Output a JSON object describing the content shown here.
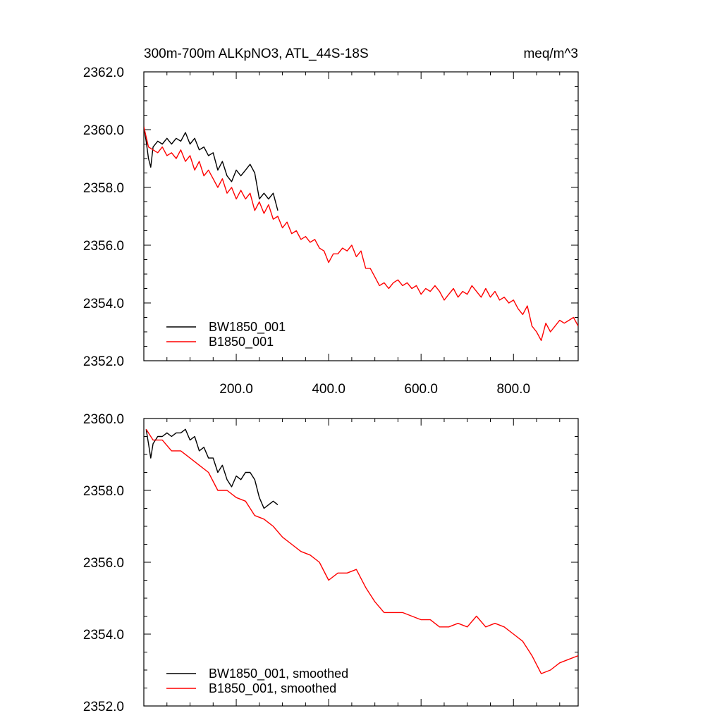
{
  "chart_data": [
    {
      "type": "line",
      "title": "300m-700m ALKpNO3, ATL_44S-18S",
      "units": "meq/m^3",
      "xlim": [
        0,
        940
      ],
      "ylim": [
        2352,
        2362
      ],
      "x_ticks": [
        200,
        400,
        600,
        800
      ],
      "x_tick_labels": [
        "200.0",
        "400.0",
        "600.0",
        "800.0"
      ],
      "y_ticks": [
        2352,
        2354,
        2356,
        2358,
        2360,
        2362
      ],
      "y_tick_labels": [
        "2352.0",
        "2354.0",
        "2356.0",
        "2358.0",
        "2360.0",
        "2362.0"
      ],
      "legend": [
        "BW1850_001",
        "B1850_001"
      ],
      "legend_position": "bottom-left",
      "series": [
        {
          "name": "BW1850_001",
          "color": "#000000",
          "x": [
            0,
            5,
            10,
            15,
            20,
            30,
            40,
            50,
            60,
            70,
            80,
            90,
            100,
            110,
            120,
            130,
            140,
            150,
            160,
            170,
            180,
            190,
            200,
            210,
            220,
            230,
            240,
            250,
            260,
            270,
            280,
            290
          ],
          "y": [
            2360.1,
            2359.6,
            2359.0,
            2358.7,
            2359.4,
            2359.6,
            2359.5,
            2359.7,
            2359.5,
            2359.7,
            2359.6,
            2359.9,
            2359.5,
            2359.7,
            2359.3,
            2359.4,
            2359.1,
            2359.2,
            2358.6,
            2358.9,
            2358.4,
            2358.2,
            2358.6,
            2358.4,
            2358.6,
            2358.8,
            2358.5,
            2357.6,
            2357.8,
            2357.6,
            2357.8,
            2357.2
          ]
        },
        {
          "name": "B1850_001",
          "color": "#ff0000",
          "x": [
            0,
            10,
            20,
            30,
            40,
            50,
            60,
            70,
            80,
            90,
            100,
            110,
            120,
            130,
            140,
            150,
            160,
            170,
            180,
            190,
            200,
            210,
            220,
            230,
            240,
            250,
            260,
            270,
            280,
            290,
            300,
            310,
            320,
            330,
            340,
            350,
            360,
            370,
            380,
            390,
            400,
            410,
            420,
            430,
            440,
            450,
            460,
            470,
            480,
            490,
            500,
            510,
            520,
            530,
            540,
            550,
            560,
            570,
            580,
            590,
            600,
            610,
            620,
            630,
            640,
            650,
            660,
            670,
            680,
            690,
            700,
            710,
            720,
            730,
            740,
            750,
            760,
            770,
            780,
            790,
            800,
            810,
            820,
            830,
            840,
            850,
            860,
            870,
            880,
            890,
            900,
            910,
            920,
            930,
            940
          ],
          "y": [
            2360.1,
            2359.4,
            2359.3,
            2359.2,
            2359.4,
            2359.1,
            2359.2,
            2359.0,
            2359.3,
            2358.9,
            2359.1,
            2358.6,
            2358.9,
            2358.4,
            2358.6,
            2358.3,
            2358.0,
            2358.3,
            2357.8,
            2358.0,
            2357.6,
            2357.9,
            2357.6,
            2357.8,
            2357.2,
            2357.5,
            2357.1,
            2357.4,
            2356.9,
            2357.0,
            2356.6,
            2356.8,
            2356.4,
            2356.5,
            2356.2,
            2356.3,
            2356.1,
            2356.2,
            2355.9,
            2355.8,
            2355.4,
            2355.7,
            2355.7,
            2355.9,
            2355.8,
            2356.0,
            2355.6,
            2355.8,
            2355.2,
            2355.2,
            2354.9,
            2354.6,
            2354.7,
            2354.5,
            2354.7,
            2354.8,
            2354.6,
            2354.7,
            2354.5,
            2354.6,
            2354.3,
            2354.5,
            2354.4,
            2354.6,
            2354.4,
            2354.1,
            2354.3,
            2354.5,
            2354.2,
            2354.4,
            2354.3,
            2354.6,
            2354.4,
            2354.2,
            2354.5,
            2354.2,
            2354.4,
            2354.1,
            2354.2,
            2354.0,
            2354.1,
            2353.8,
            2353.6,
            2353.9,
            2353.2,
            2353.0,
            2352.7,
            2353.3,
            2353.0,
            2353.2,
            2353.4,
            2353.3,
            2353.4,
            2353.5,
            2353.2
          ]
        }
      ]
    },
    {
      "type": "line",
      "xlim": [
        0,
        940
      ],
      "ylim": [
        2352,
        2360
      ],
      "x_ticks": [
        200,
        400,
        600,
        800
      ],
      "y_ticks": [
        2352,
        2354,
        2356,
        2358,
        2360
      ],
      "y_tick_labels": [
        "2352.0",
        "2354.0",
        "2356.0",
        "2358.0",
        "2360.0"
      ],
      "legend": [
        "BW1850_001, smoothed",
        "B1850_001, smoothed"
      ],
      "legend_position": "bottom-left",
      "series": [
        {
          "name": "BW1850_001, smoothed",
          "color": "#000000",
          "x": [
            5,
            10,
            15,
            20,
            30,
            40,
            50,
            60,
            70,
            80,
            90,
            100,
            110,
            120,
            130,
            140,
            150,
            160,
            170,
            180,
            190,
            200,
            210,
            220,
            230,
            240,
            250,
            260,
            270,
            280,
            290
          ],
          "y": [
            2359.7,
            2359.3,
            2358.9,
            2359.3,
            2359.5,
            2359.5,
            2359.6,
            2359.5,
            2359.6,
            2359.6,
            2359.7,
            2359.4,
            2359.5,
            2359.1,
            2359.2,
            2358.9,
            2358.9,
            2358.5,
            2358.7,
            2358.3,
            2358.1,
            2358.4,
            2358.3,
            2358.5,
            2358.5,
            2358.3,
            2357.8,
            2357.5,
            2357.6,
            2357.7,
            2357.6
          ]
        },
        {
          "name": "B1850_001, smoothed",
          "color": "#ff0000",
          "x": [
            5,
            20,
            40,
            60,
            80,
            100,
            120,
            140,
            160,
            180,
            200,
            220,
            240,
            260,
            280,
            300,
            320,
            340,
            360,
            380,
            400,
            420,
            440,
            460,
            480,
            500,
            520,
            540,
            560,
            580,
            600,
            620,
            640,
            660,
            680,
            700,
            720,
            740,
            760,
            780,
            800,
            820,
            840,
            860,
            880,
            900,
            920,
            940
          ],
          "y": [
            2359.7,
            2359.4,
            2359.4,
            2359.1,
            2359.1,
            2358.9,
            2358.7,
            2358.5,
            2358.0,
            2358.0,
            2357.8,
            2357.7,
            2357.3,
            2357.2,
            2357.0,
            2356.7,
            2356.5,
            2356.3,
            2356.2,
            2356.0,
            2355.5,
            2355.7,
            2355.7,
            2355.8,
            2355.3,
            2354.9,
            2354.6,
            2354.6,
            2354.6,
            2354.5,
            2354.4,
            2354.4,
            2354.2,
            2354.2,
            2354.3,
            2354.2,
            2354.5,
            2354.2,
            2354.3,
            2354.2,
            2354.0,
            2353.8,
            2353.4,
            2352.9,
            2353.0,
            2353.2,
            2353.3,
            2353.4
          ]
        }
      ]
    }
  ]
}
